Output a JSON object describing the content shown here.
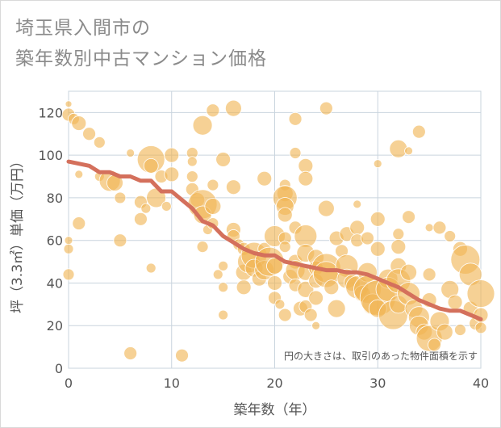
{
  "title_lines": [
    "埼玉県入間市の",
    "築年数別中古マンション価格"
  ],
  "chart_data": {
    "type": "scatter",
    "title": "埼玉県入間市の築年数別中古マンション価格",
    "xlabel": "築年数（年）",
    "ylabel": "坪（3.3㎡）単価（万円）",
    "xlim": [
      0,
      40
    ],
    "ylim": [
      0,
      130
    ],
    "x_ticks": [
      0,
      10,
      20,
      30,
      40
    ],
    "y_ticks": [
      0,
      20,
      40,
      60,
      80,
      100,
      120
    ],
    "grid": true,
    "note": "円の大きさは、取引のあった物件面積を示す",
    "colors": {
      "bubble": "#f0b454",
      "trend": "#d4705c",
      "grid": "#c9d4de",
      "plot_bg": "#ffffff"
    },
    "series": [
      {
        "kind": "bubbles",
        "points": [
          [
            0,
            124,
            4
          ],
          [
            0,
            119,
            8
          ],
          [
            0.5,
            117,
            7
          ],
          [
            1,
            115,
            9
          ],
          [
            2,
            110,
            8
          ],
          [
            3,
            106,
            7
          ],
          [
            0,
            60,
            5
          ],
          [
            0,
            56,
            6
          ],
          [
            0,
            44,
            7
          ],
          [
            1,
            68,
            8
          ],
          [
            1,
            91,
            5
          ],
          [
            3,
            90,
            6
          ],
          [
            4,
            88,
            13
          ],
          [
            4.5,
            87,
            10
          ],
          [
            5,
            80,
            7
          ],
          [
            5,
            60,
            8
          ],
          [
            6,
            101,
            5
          ],
          [
            6,
            7,
            8
          ],
          [
            7,
            78,
            8
          ],
          [
            7,
            70,
            8
          ],
          [
            7.5,
            75,
            6
          ],
          [
            8,
            98,
            17
          ],
          [
            8,
            95,
            9
          ],
          [
            8,
            47,
            6
          ],
          [
            8.5,
            80,
            12
          ],
          [
            9,
            90,
            8
          ],
          [
            9.5,
            76,
            6
          ],
          [
            10,
            100,
            9
          ],
          [
            10,
            91,
            9
          ],
          [
            11,
            6,
            8
          ],
          [
            12,
            101,
            7
          ],
          [
            12,
            97,
            6
          ],
          [
            12,
            90,
            7
          ],
          [
            12,
            84,
            8
          ],
          [
            12.5,
            79,
            9
          ],
          [
            13,
            114,
            12
          ],
          [
            13,
            77,
            18
          ],
          [
            13,
            72,
            11
          ],
          [
            13,
            57,
            7
          ],
          [
            13.5,
            65,
            6
          ],
          [
            14,
            121,
            8
          ],
          [
            14,
            86,
            7
          ],
          [
            14,
            76,
            10
          ],
          [
            14,
            68,
            7
          ],
          [
            14.5,
            44,
            6
          ],
          [
            15,
            98,
            9
          ],
          [
            15,
            48,
            6
          ],
          [
            15,
            38,
            6
          ],
          [
            15,
            25,
            6
          ],
          [
            16,
            122,
            10
          ],
          [
            16,
            85,
            9
          ],
          [
            16,
            65,
            9
          ],
          [
            16,
            62,
            8
          ],
          [
            16.5,
            58,
            7
          ],
          [
            17,
            56,
            8
          ],
          [
            17,
            45,
            10
          ],
          [
            17,
            38,
            9
          ],
          [
            17.5,
            50,
            14
          ],
          [
            18,
            53,
            16
          ],
          [
            18,
            47,
            11
          ],
          [
            18.5,
            42,
            9
          ],
          [
            19,
            89,
            9
          ],
          [
            19,
            56,
            8
          ],
          [
            19,
            46,
            12
          ],
          [
            19.5,
            50,
            18
          ],
          [
            20,
            62,
            13
          ],
          [
            20,
            48,
            10
          ],
          [
            20,
            40,
            9
          ],
          [
            20,
            33,
            8
          ],
          [
            20.5,
            30,
            6
          ],
          [
            21,
            86,
            7
          ],
          [
            21,
            82,
            10
          ],
          [
            21,
            80,
            15
          ],
          [
            21,
            76,
            11
          ],
          [
            21,
            72,
            9
          ],
          [
            21,
            61,
            8
          ],
          [
            21,
            57,
            7
          ],
          [
            21,
            25,
            8
          ],
          [
            21.5,
            43,
            9
          ],
          [
            22,
            117,
            8
          ],
          [
            22,
            101,
            7
          ],
          [
            22,
            66,
            8
          ],
          [
            22,
            50,
            9
          ],
          [
            22,
            46,
            12
          ],
          [
            22,
            39,
            8
          ],
          [
            22.5,
            28,
            9
          ],
          [
            23,
            95,
            9
          ],
          [
            23,
            89,
            9
          ],
          [
            23,
            62,
            14
          ],
          [
            23,
            54,
            11
          ],
          [
            23,
            45,
            10
          ],
          [
            23,
            37,
            10
          ],
          [
            23,
            29,
            8
          ],
          [
            23.5,
            25,
            8
          ],
          [
            24,
            52,
            10
          ],
          [
            24,
            47,
            9
          ],
          [
            24,
            41,
            9
          ],
          [
            24,
            33,
            9
          ],
          [
            24,
            20,
            5
          ],
          [
            25,
            122,
            8
          ],
          [
            25,
            75,
            10
          ],
          [
            25,
            47,
            18
          ],
          [
            25,
            44,
            16
          ],
          [
            25.5,
            38,
            9
          ],
          [
            26,
            61,
            9
          ],
          [
            26,
            28,
            11
          ],
          [
            26.5,
            55,
            8
          ],
          [
            27,
            63,
            9
          ],
          [
            27,
            48,
            14
          ],
          [
            27,
            42,
            12
          ],
          [
            27.5,
            40,
            10
          ],
          [
            28,
            77,
            5
          ],
          [
            28,
            66,
            9
          ],
          [
            28,
            60,
            8
          ],
          [
            28,
            38,
            14
          ],
          [
            28.5,
            35,
            10
          ],
          [
            29,
            61,
            8
          ],
          [
            29,
            45,
            12
          ],
          [
            29,
            37,
            17
          ],
          [
            29.5,
            30,
            13
          ],
          [
            30,
            96,
            5
          ],
          [
            30,
            70,
            9
          ],
          [
            30,
            56,
            9
          ],
          [
            30,
            33,
            22
          ],
          [
            30,
            28,
            11
          ],
          [
            31,
            42,
            12
          ],
          [
            31,
            37,
            15
          ],
          [
            31.5,
            25,
            18
          ],
          [
            32,
            103,
            11
          ],
          [
            32,
            63,
            7
          ],
          [
            32,
            57,
            9
          ],
          [
            32,
            48,
            10
          ],
          [
            32,
            41,
            15
          ],
          [
            32,
            30,
            11
          ],
          [
            33,
            102,
            5
          ],
          [
            33,
            71,
            8
          ],
          [
            33,
            45,
            10
          ],
          [
            33,
            35,
            14
          ],
          [
            33.5,
            28,
            11
          ],
          [
            34,
            111,
            8
          ],
          [
            34,
            24,
            13
          ],
          [
            34,
            20,
            12
          ],
          [
            34.5,
            17,
            10
          ],
          [
            35,
            66,
            5
          ],
          [
            35,
            44,
            8
          ],
          [
            35,
            32,
            9
          ],
          [
            35,
            14,
            16
          ],
          [
            35.5,
            11,
            8
          ],
          [
            36,
            66,
            8
          ],
          [
            36,
            22,
            12
          ],
          [
            36.5,
            17,
            10
          ],
          [
            37,
            62,
            7
          ],
          [
            37,
            37,
            11
          ],
          [
            37.5,
            31,
            9
          ],
          [
            38,
            56,
            9
          ],
          [
            38.5,
            51,
            18
          ],
          [
            38,
            18,
            7
          ],
          [
            39,
            44,
            14
          ],
          [
            39,
            28,
            9
          ],
          [
            39.5,
            21,
            8
          ],
          [
            40,
            35,
            17
          ],
          [
            40,
            25,
            9
          ],
          [
            40,
            19,
            7
          ]
        ]
      },
      {
        "kind": "trend",
        "x": [
          0,
          1,
          2,
          3,
          4,
          5,
          6,
          7,
          8,
          9,
          10,
          11,
          12,
          13,
          14,
          15,
          16,
          17,
          18,
          19,
          20,
          21,
          22,
          23,
          24,
          25,
          26,
          27,
          28,
          29,
          30,
          31,
          32,
          33,
          34,
          35,
          36,
          37,
          38,
          39,
          40
        ],
        "y": [
          97,
          96,
          95,
          92,
          92,
          90,
          90,
          88,
          88,
          83,
          83,
          79,
          75,
          69,
          67,
          62,
          59,
          56,
          54,
          53,
          53,
          50,
          49,
          48,
          47,
          46,
          46,
          45,
          45,
          44,
          42,
          40,
          38,
          35,
          32,
          30,
          28,
          27,
          27,
          25,
          23
        ]
      }
    ]
  }
}
